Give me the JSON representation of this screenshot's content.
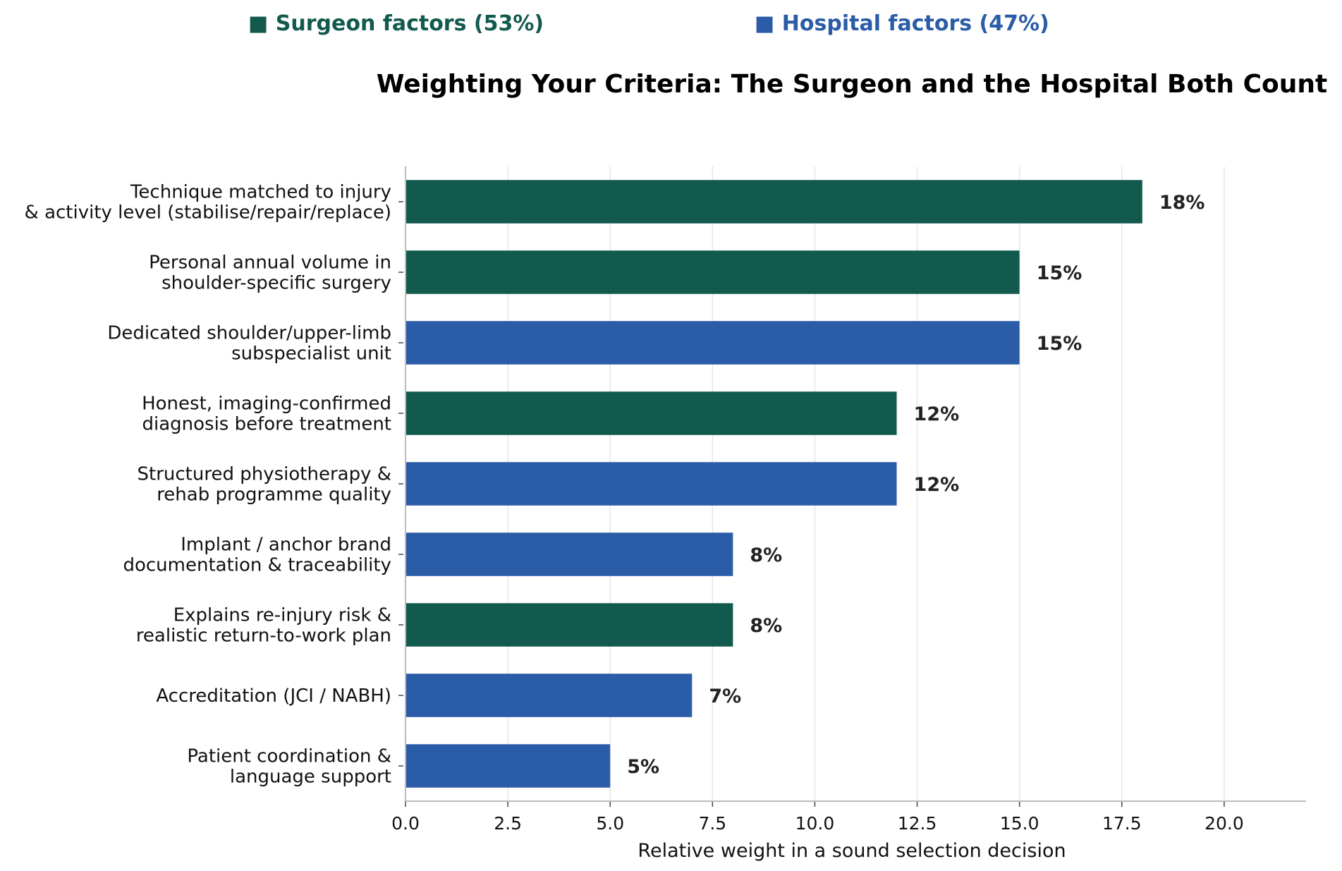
{
  "chart_data": {
    "type": "bar",
    "orientation": "horizontal",
    "title": "Weighting Your Criteria: The Surgeon and the Hospital Both Count",
    "xlabel": "Relative weight in a sound selection decision",
    "ylabel": "",
    "xlim": [
      0,
      22
    ],
    "xticks": [
      0,
      2.5,
      5,
      7.5,
      10,
      12.5,
      15,
      17.5,
      20
    ],
    "xtick_labels": [
      "0.0",
      "2.5",
      "5.0",
      "7.5",
      "10.0",
      "12.5",
      "15.0",
      "17.5",
      "20.0"
    ],
    "grid": "vertical",
    "legend_position": "top",
    "legend": [
      {
        "label": "■ Surgeon factors (53%)",
        "color": "#125a4e"
      },
      {
        "label": "■ Hospital factors (47%)",
        "color": "#2a5ca8"
      }
    ],
    "bars": [
      {
        "label_lines": [
          "Technique matched to injury",
          "& activity level (stabilise/repair/replace)"
        ],
        "value": 18,
        "value_label": "18%",
        "group": "surgeon"
      },
      {
        "label_lines": [
          "Personal annual volume in",
          "shoulder-specific surgery"
        ],
        "value": 15,
        "value_label": "15%",
        "group": "surgeon"
      },
      {
        "label_lines": [
          "Dedicated shoulder/upper-limb",
          "subspecialist unit"
        ],
        "value": 15,
        "value_label": "15%",
        "group": "hospital"
      },
      {
        "label_lines": [
          "Honest, imaging-confirmed",
          "diagnosis before treatment"
        ],
        "value": 12,
        "value_label": "12%",
        "group": "surgeon"
      },
      {
        "label_lines": [
          "Structured physiotherapy &",
          "rehab programme quality"
        ],
        "value": 12,
        "value_label": "12%",
        "group": "hospital"
      },
      {
        "label_lines": [
          "Implant / anchor brand",
          "documentation & traceability"
        ],
        "value": 8,
        "value_label": "8%",
        "group": "hospital"
      },
      {
        "label_lines": [
          "Explains re-injury risk &",
          "realistic return-to-work plan"
        ],
        "value": 8,
        "value_label": "8%",
        "group": "surgeon"
      },
      {
        "label_lines": [
          "Accreditation (JCI / NABH)"
        ],
        "value": 7,
        "value_label": "7%",
        "group": "hospital"
      },
      {
        "label_lines": [
          "Patient coordination &",
          "language support"
        ],
        "value": 5,
        "value_label": "5%",
        "group": "hospital"
      }
    ],
    "colors": {
      "surgeon": "#125a4e",
      "hospital": "#2a5ca8",
      "grid": "#e6e6e6",
      "axis": "#bbbbbb"
    }
  }
}
